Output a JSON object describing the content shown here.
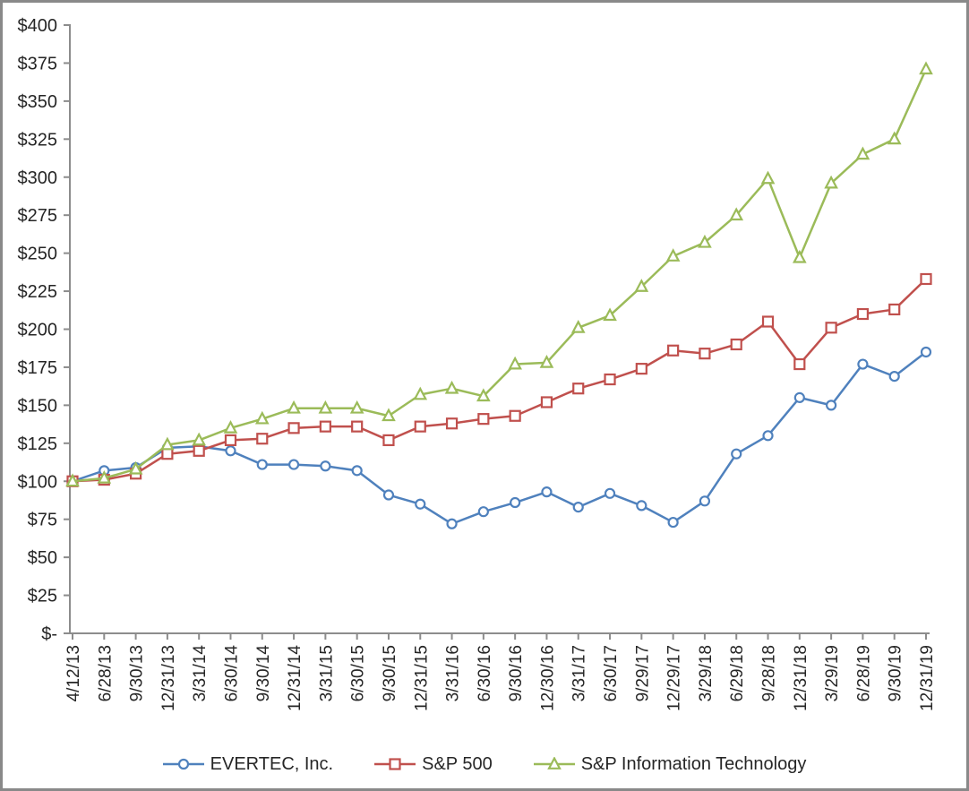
{
  "chart_data": {
    "type": "line",
    "x_labels": [
      "4/12/13",
      "6/28/13",
      "9/30/13",
      "12/31/13",
      "3/31/14",
      "6/30/14",
      "9/30/14",
      "12/31/14",
      "3/31/15",
      "6/30/15",
      "9/30/15",
      "12/31/15",
      "3/31/16",
      "6/30/16",
      "9/30/16",
      "12/30/16",
      "3/31/17",
      "6/30/17",
      "9/29/17",
      "12/29/17",
      "3/29/18",
      "6/29/18",
      "9/28/18",
      "12/31/18",
      "3/29/19",
      "6/28/19",
      "9/30/19",
      "12/31/19"
    ],
    "series": [
      {
        "name": "EVERTEC, Inc.",
        "color": "#4F81BD",
        "marker": "circle",
        "values": [
          100,
          107,
          109,
          122,
          123,
          120,
          111,
          111,
          110,
          107,
          91,
          85,
          72,
          80,
          86,
          93,
          83,
          92,
          84,
          73,
          87,
          118,
          130,
          155,
          150,
          177,
          169,
          185
        ]
      },
      {
        "name": "S&P 500",
        "color": "#C0504D",
        "marker": "square",
        "values": [
          100,
          101,
          105,
          118,
          120,
          127,
          128,
          135,
          136,
          136,
          127,
          136,
          138,
          141,
          143,
          152,
          161,
          167,
          174,
          186,
          184,
          190,
          205,
          177,
          201,
          210,
          213,
          233
        ]
      },
      {
        "name": "S&P Information Technology",
        "color": "#9BBB59",
        "marker": "triangle",
        "values": [
          100,
          102,
          108,
          124,
          127,
          135,
          141,
          148,
          148,
          148,
          143,
          157,
          161,
          156,
          177,
          178,
          201,
          209,
          228,
          248,
          257,
          275,
          299,
          247,
          296,
          315,
          325,
          371
        ]
      }
    ],
    "ylim": [
      0,
      400
    ],
    "y_tick_step": 25,
    "y_tick_prefix": "$",
    "y_zero_label": "$-",
    "xlabel": "",
    "ylabel": "",
    "grid": false,
    "legend_position": "bottom",
    "axis_color": "#8C8C8C",
    "text_color": "#262626",
    "border_color": "#898989"
  }
}
